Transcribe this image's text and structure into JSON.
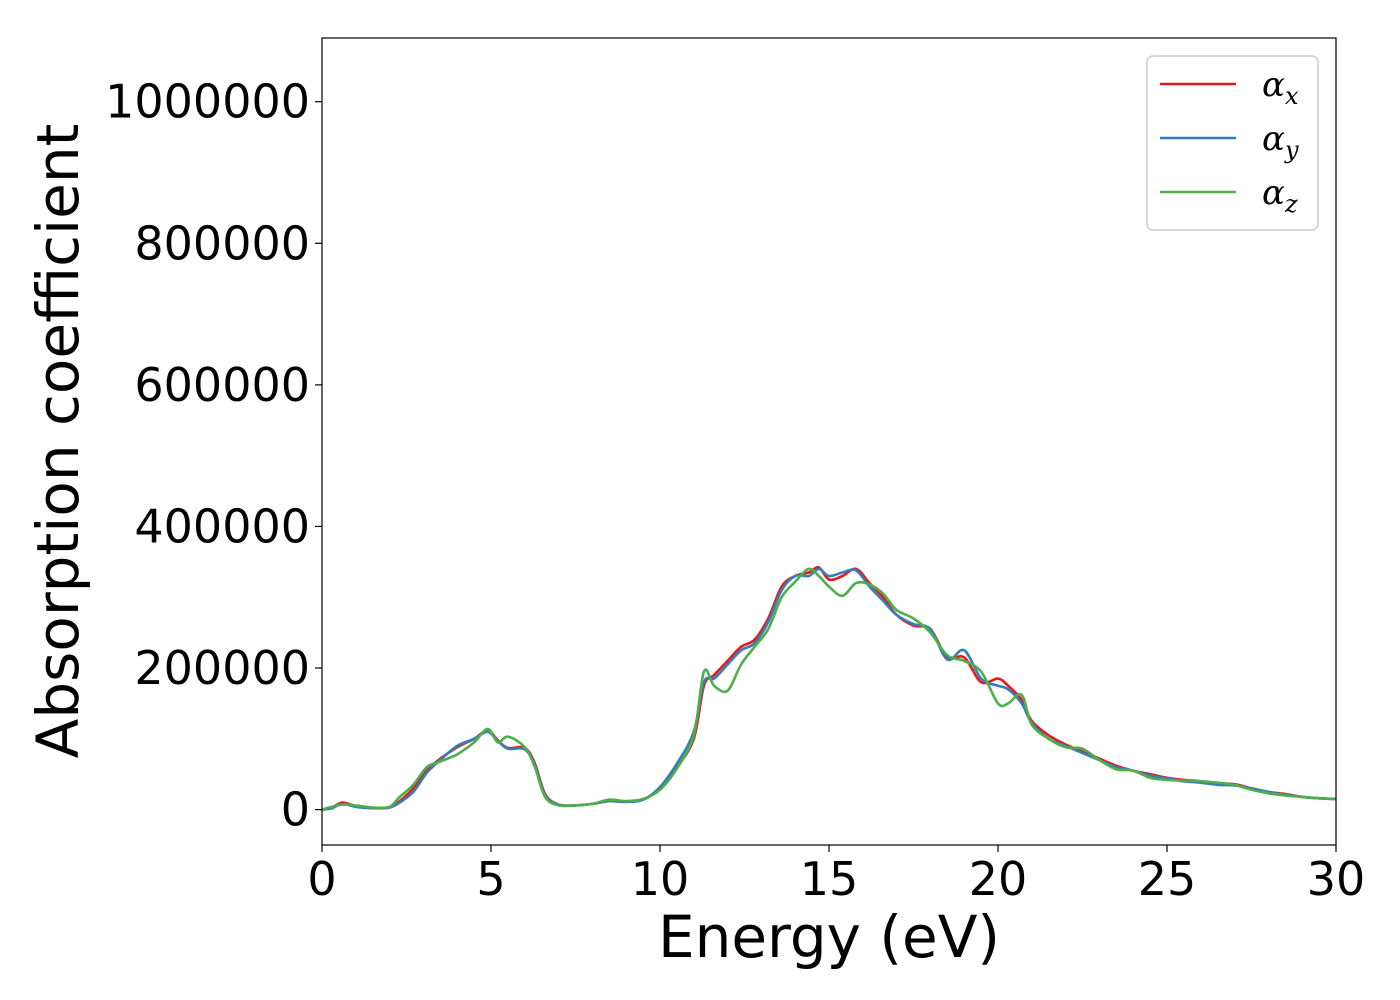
{
  "chart_data": {
    "type": "line",
    "title": "",
    "xlabel": "Energy (eV)",
    "ylabel": "Absorption coefficient",
    "xlim": [
      0,
      30
    ],
    "ylim": [
      -50000,
      1090000
    ],
    "xticks": [
      0,
      5,
      10,
      15,
      20,
      25,
      30
    ],
    "xtick_labels": [
      "0",
      "5",
      "10",
      "15",
      "20",
      "25",
      "30"
    ],
    "yticks": [
      0,
      200000,
      400000,
      600000,
      800000,
      1000000
    ],
    "ytick_labels": [
      "0",
      "200000",
      "400000",
      "600000",
      "800000",
      "1000000"
    ],
    "grid": false,
    "legend_position": "top-right",
    "series": [
      {
        "name": "αx",
        "symbol": "α",
        "subscript": "x",
        "color": "#e41a1c",
        "x": [
          0,
          0.3,
          0.6,
          1,
          1.5,
          2,
          2.3,
          2.7,
          3.1,
          3.5,
          4,
          4.5,
          4.9,
          5.2,
          5.5,
          6,
          6.3,
          6.6,
          7,
          7.5,
          8,
          8.5,
          9,
          9.5,
          10,
          10.5,
          11,
          11.3,
          11.6,
          12,
          12.4,
          12.8,
          13.2,
          13.6,
          14,
          14.4,
          14.7,
          15,
          15.4,
          15.8,
          16.2,
          16.6,
          17,
          17.5,
          18,
          18.5,
          19,
          19.5,
          20,
          20.3,
          20.7,
          21,
          21.5,
          22,
          22.5,
          23,
          23.5,
          24,
          24.5,
          25,
          25.5,
          26,
          26.5,
          27,
          27.5,
          28,
          28.5,
          29,
          29.5,
          30
        ],
        "values": [
          0,
          3000,
          10000,
          5000,
          2000,
          3000,
          12000,
          30000,
          55000,
          72000,
          88000,
          100000,
          112000,
          98000,
          87000,
          87000,
          65000,
          22000,
          7000,
          6000,
          8000,
          12000,
          11000,
          14000,
          30000,
          60000,
          100000,
          175000,
          190000,
          210000,
          230000,
          240000,
          270000,
          315000,
          330000,
          335000,
          342000,
          325000,
          330000,
          340000,
          320000,
          300000,
          275000,
          260000,
          255000,
          215000,
          215000,
          180000,
          185000,
          175000,
          155000,
          125000,
          105000,
          92000,
          82000,
          72000,
          62000,
          55000,
          50000,
          45000,
          42000,
          40000,
          37000,
          36000,
          30000,
          25000,
          22000,
          18000,
          16000,
          15000
        ]
      },
      {
        "name": "αy",
        "symbol": "α",
        "subscript": "y",
        "color": "#377eb8",
        "x": [
          0,
          0.3,
          0.6,
          1,
          1.5,
          2,
          2.3,
          2.7,
          3.1,
          3.5,
          4,
          4.5,
          4.9,
          5.2,
          5.5,
          6,
          6.3,
          6.6,
          7,
          7.5,
          8,
          8.5,
          9,
          9.5,
          10,
          10.5,
          11,
          11.3,
          11.6,
          12,
          12.4,
          12.8,
          13.2,
          13.6,
          14,
          14.4,
          14.7,
          15,
          15.4,
          15.8,
          16.2,
          16.6,
          17,
          17.5,
          18,
          18.5,
          19,
          19.5,
          20,
          20.3,
          20.7,
          21,
          21.5,
          22,
          22.5,
          23,
          23.5,
          24,
          24.5,
          25,
          25.5,
          26,
          26.5,
          27,
          27.5,
          28,
          28.5,
          29,
          29.5,
          30
        ],
        "values": [
          0,
          2000,
          8000,
          4000,
          2000,
          3000,
          10000,
          25000,
          52000,
          70000,
          90000,
          100000,
          110000,
          97000,
          86000,
          85000,
          62000,
          20000,
          7000,
          6000,
          8000,
          12000,
          11000,
          14000,
          32000,
          65000,
          110000,
          180000,
          185000,
          205000,
          225000,
          235000,
          265000,
          310000,
          330000,
          330000,
          340000,
          330000,
          335000,
          338000,
          315000,
          295000,
          275000,
          262000,
          255000,
          212000,
          225000,
          185000,
          175000,
          170000,
          150000,
          122000,
          100000,
          90000,
          80000,
          70000,
          60000,
          55000,
          48000,
          44000,
          40000,
          38000,
          35000,
          34000,
          30000,
          25000,
          21000,
          18000,
          16000,
          15000
        ]
      },
      {
        "name": "αz",
        "symbol": "α",
        "subscript": "z",
        "color": "#4daf4a",
        "x": [
          0,
          0.3,
          0.6,
          1,
          1.5,
          2,
          2.3,
          2.7,
          3.1,
          3.5,
          4,
          4.5,
          4.9,
          5.2,
          5.5,
          6,
          6.3,
          6.6,
          7,
          7.5,
          8,
          8.5,
          9,
          9.5,
          10,
          10.5,
          11,
          11.3,
          11.6,
          12,
          12.4,
          12.8,
          13.2,
          13.6,
          14,
          14.4,
          14.7,
          15,
          15.4,
          15.8,
          16.2,
          16.6,
          17,
          17.5,
          18,
          18.5,
          19,
          19.5,
          20,
          20.3,
          20.7,
          21,
          21.5,
          22,
          22.5,
          23,
          23.5,
          24,
          24.5,
          25,
          25.5,
          26,
          26.5,
          27,
          27.5,
          28,
          28.5,
          29,
          29.5,
          30
        ],
        "values": [
          0,
          4000,
          7000,
          6000,
          3000,
          4000,
          18000,
          35000,
          60000,
          68000,
          78000,
          95000,
          114000,
          95000,
          103000,
          88000,
          60000,
          18000,
          6000,
          6000,
          8000,
          14000,
          12000,
          15000,
          28000,
          58000,
          105000,
          195000,
          175000,
          168000,
          205000,
          230000,
          255000,
          300000,
          322000,
          340000,
          330000,
          315000,
          302000,
          320000,
          318000,
          305000,
          282000,
          270000,
          250000,
          218000,
          210000,
          195000,
          150000,
          150000,
          162000,
          120000,
          100000,
          88000,
          86000,
          70000,
          57000,
          55000,
          45000,
          42000,
          41000,
          40000,
          38000,
          35000,
          28000,
          23000,
          20000,
          18000,
          16000,
          15000
        ]
      }
    ]
  }
}
